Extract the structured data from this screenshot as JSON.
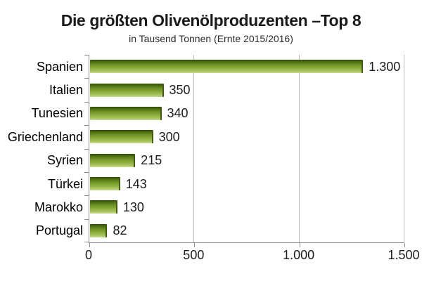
{
  "header": {
    "title": "Die größten Olivenölproduzenten –Top 8",
    "subtitle": "in Tausend Tonnen (Ernte 2015/2016)"
  },
  "chart_data": {
    "type": "bar",
    "orientation": "horizontal",
    "title": "Die größten Olivenölproduzenten –Top 8",
    "subtitle": "in Tausend Tonnen (Ernte 2015/2016)",
    "categories": [
      "Spanien",
      "Italien",
      "Tunesien",
      "Griechenland",
      "Syrien",
      "Türkei",
      "Marokko",
      "Portugal"
    ],
    "values": [
      1300,
      350,
      340,
      300,
      215,
      143,
      130,
      82
    ],
    "value_labels": [
      "1.300",
      "350",
      "340",
      "300",
      "215",
      "143",
      "130",
      "82"
    ],
    "xlim": [
      0,
      1500
    ],
    "x_ticks": [
      0,
      500,
      1000,
      1500
    ],
    "x_tick_labels": [
      "0",
      "500",
      "1.000",
      "1.500"
    ],
    "grid": "vertical",
    "legend": "none",
    "colors": {
      "bar_top": "#2e4708",
      "bar_mid": "#6f9226",
      "bar_bottom": "#cbdd96",
      "bar_edge": "#3f5d0c",
      "axis": "#8c8c8c",
      "gridline": "#bcbcbc",
      "text": "#1a1a1a"
    }
  }
}
